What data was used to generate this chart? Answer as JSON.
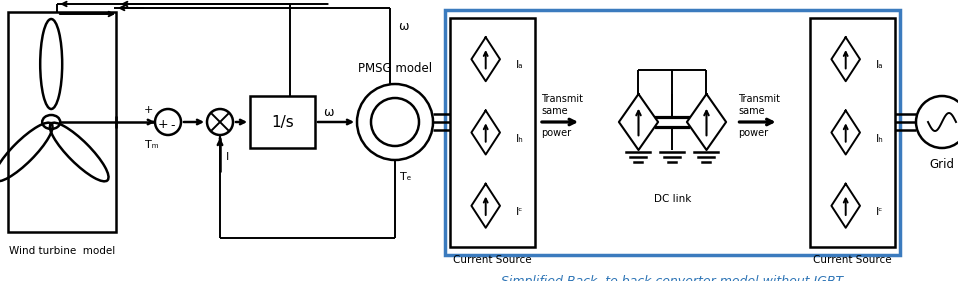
{
  "fig_width": 9.58,
  "fig_height": 2.81,
  "dpi": 100,
  "bg_color": "#ffffff",
  "blue_box_color": "#3B7BBE",
  "blue_text_color": "#2E75B6",
  "black": "#000000",
  "title_text": "Simplified Back  to back converter model without IGBT",
  "wind_label": "Wind turbine  model",
  "pmsg_label": "PMSG model",
  "grid_label": "Grid",
  "current_source_label": "Current Source"
}
